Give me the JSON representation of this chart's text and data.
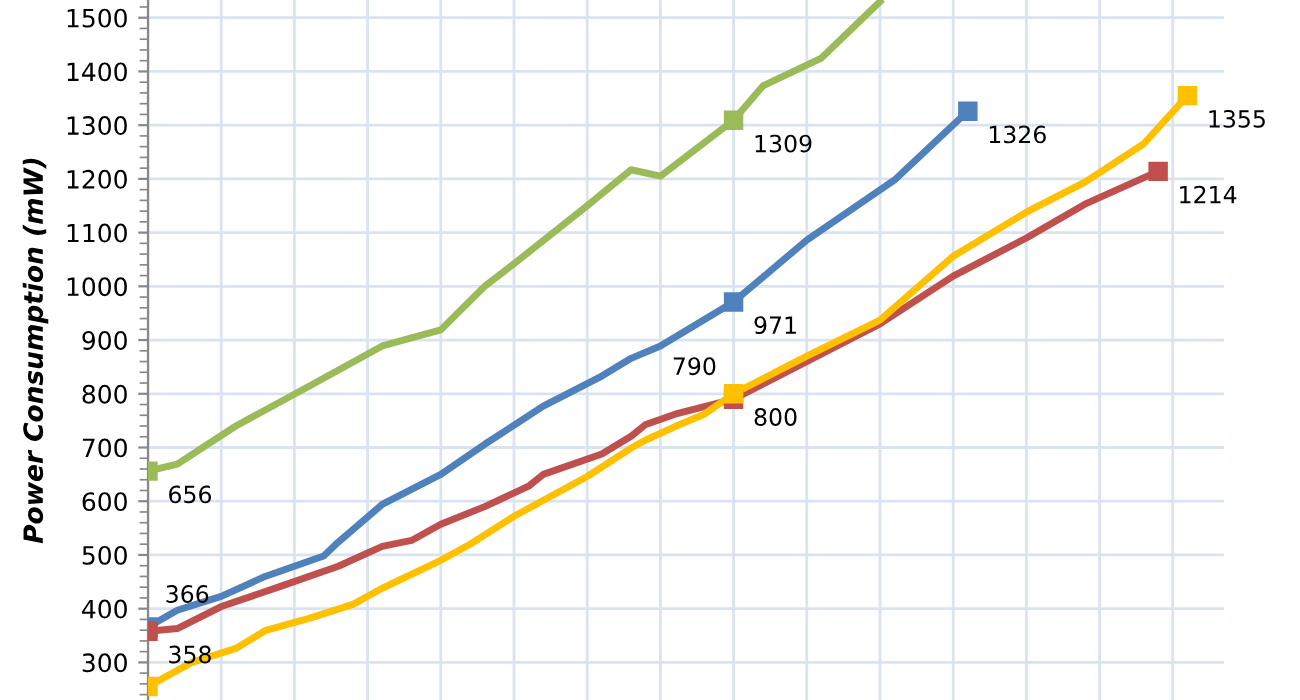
{
  "chart_data": {
    "type": "line",
    "ylabel": "Power Consumption (mW)",
    "categories": [
      null,
      null,
      null,
      null,
      null,
      null,
      null,
      null,
      null,
      null,
      null,
      null,
      null,
      null,
      null,
      null,
      null,
      null,
      null,
      null,
      null,
      null,
      null,
      null,
      null,
      null,
      null,
      null,
      null,
      null,
      null,
      null,
      null,
      null,
      null,
      null,
      null,
      null,
      null,
      null,
      null,
      null,
      null,
      null,
      null,
      null,
      null,
      null,
      null,
      null,
      null,
      null,
      null,
      null,
      null,
      null,
      null,
      null,
      null,
      null,
      null,
      null,
      null,
      null,
      null,
      null,
      null,
      null,
      null,
      null,
      null,
      null,
      null,
      null
    ],
    "ylim": [
      230,
      1533
    ],
    "yticks": [
      300,
      400,
      500,
      600,
      700,
      800,
      900,
      1000,
      1100,
      1200,
      1300,
      1400,
      1500
    ],
    "tick_labels": "y",
    "grid": true,
    "line_style": "solid",
    "series": [
      {
        "color": "#9bbb59",
        "values": [
          656,
          null,
          669,
          null,
          null,
          null,
          740,
          null,
          null,
          null,
          null,
          814,
          null,
          null,
          null,
          null,
          889,
          null,
          null,
          null,
          919,
          null,
          null,
          1000,
          null,
          1042,
          null,
          null,
          null,
          null,
          1150,
          null,
          null,
          1217,
          null,
          1205,
          null,
          null,
          null,
          null,
          1309,
          null,
          1373,
          null,
          null,
          null,
          1425,
          null,
          null,
          null,
          1530,
          null,
          null,
          null,
          null,
          null,
          null,
          null,
          null,
          null,
          null,
          null,
          null,
          null,
          null,
          null,
          null,
          null,
          null,
          null,
          null,
          null,
          null,
          null
        ],
        "value_labels": [
          "656",
          null,
          null,
          null,
          null,
          null,
          null,
          null,
          null,
          null,
          null,
          null,
          null,
          null,
          null,
          null,
          null,
          null,
          null,
          null,
          null,
          null,
          null,
          null,
          null,
          null,
          null,
          null,
          null,
          null,
          null,
          null,
          null,
          null,
          null,
          null,
          null,
          null,
          null,
          null,
          "1309",
          null,
          null,
          null,
          null,
          null,
          null,
          null,
          null,
          null,
          null,
          null,
          null,
          null,
          null,
          null,
          null,
          null,
          null,
          null,
          null,
          null,
          null,
          null,
          null,
          null,
          null,
          null,
          null,
          null,
          null,
          null,
          null,
          null
        ]
      },
      {
        "color": "#4f81bd",
        "values": [
          366,
          null,
          397,
          null,
          null,
          423,
          null,
          null,
          460,
          null,
          479,
          null,
          498,
          524,
          null,
          null,
          594,
          null,
          null,
          null,
          650,
          null,
          null,
          706,
          null,
          null,
          null,
          777,
          null,
          null,
          null,
          833,
          null,
          866,
          null,
          889,
          null,
          null,
          null,
          null,
          971,
          null,
          null,
          null,
          null,
          1086,
          null,
          null,
          null,
          null,
          null,
          1198,
          null,
          null,
          null,
          null,
          1326,
          null,
          null,
          null,
          null,
          null,
          null,
          null,
          null,
          null,
          null,
          null,
          null,
          null,
          null,
          null,
          null,
          null
        ],
        "value_labels": [
          "366",
          null,
          null,
          null,
          null,
          null,
          null,
          null,
          null,
          null,
          null,
          null,
          null,
          null,
          null,
          null,
          null,
          null,
          null,
          null,
          null,
          null,
          null,
          null,
          null,
          null,
          null,
          null,
          null,
          null,
          null,
          null,
          null,
          null,
          null,
          null,
          null,
          null,
          null,
          null,
          "971",
          null,
          null,
          null,
          null,
          null,
          null,
          null,
          null,
          null,
          null,
          null,
          null,
          null,
          null,
          null,
          "1326",
          null,
          null,
          null,
          null,
          null,
          null,
          null,
          null,
          null,
          null,
          null,
          null,
          null,
          null,
          null,
          null,
          null
        ]
      },
      {
        "color": "#c0504d",
        "values": [
          358,
          null,
          363,
          null,
          null,
          404,
          null,
          null,
          null,
          441,
          null,
          null,
          null,
          479,
          null,
          null,
          516,
          null,
          527,
          null,
          557,
          null,
          null,
          590,
          null,
          null,
          628,
          650,
          null,
          null,
          null,
          688,
          null,
          721,
          743,
          null,
          762,
          null,
          null,
          null,
          790,
          null,
          null,
          null,
          null,
          null,
          null,
          null,
          null,
          null,
          930,
          null,
          null,
          null,
          null,
          1019,
          null,
          null,
          null,
          null,
          1090,
          null,
          null,
          null,
          1153,
          null,
          null,
          null,
          null,
          1214,
          null,
          null,
          null,
          null
        ],
        "value_labels": [
          "358",
          null,
          null,
          null,
          null,
          null,
          null,
          null,
          null,
          null,
          null,
          null,
          null,
          null,
          null,
          null,
          null,
          null,
          null,
          null,
          null,
          null,
          null,
          null,
          null,
          null,
          null,
          null,
          null,
          null,
          null,
          null,
          null,
          null,
          null,
          null,
          null,
          null,
          null,
          null,
          "790",
          null,
          null,
          null,
          null,
          null,
          null,
          null,
          null,
          null,
          null,
          null,
          null,
          null,
          null,
          null,
          null,
          null,
          null,
          null,
          null,
          null,
          null,
          null,
          null,
          null,
          null,
          null,
          null,
          "1214",
          null,
          null,
          null,
          null
        ]
      },
      {
        "color": "#ffc000",
        "values": [
          255,
          null,
          null,
          300,
          null,
          null,
          326,
          null,
          359,
          null,
          null,
          382,
          null,
          null,
          408,
          null,
          438,
          null,
          null,
          null,
          490,
          null,
          520,
          null,
          null,
          572,
          null,
          null,
          null,
          null,
          646,
          null,
          null,
          699,
          714,
          null,
          739,
          null,
          762,
          null,
          800,
          null,
          null,
          null,
          null,
          870,
          null,
          null,
          null,
          null,
          937,
          null,
          null,
          null,
          null,
          1056,
          null,
          null,
          null,
          null,
          1138,
          null,
          null,
          null,
          1194,
          null,
          null,
          null,
          1265,
          null,
          null,
          1355,
          null,
          null
        ],
        "value_labels": [
          null,
          null,
          null,
          null,
          null,
          null,
          null,
          null,
          null,
          null,
          null,
          null,
          null,
          null,
          null,
          null,
          null,
          null,
          null,
          null,
          null,
          null,
          null,
          null,
          null,
          null,
          null,
          null,
          null,
          null,
          null,
          null,
          null,
          null,
          null,
          null,
          null,
          null,
          null,
          null,
          "800",
          null,
          null,
          null,
          null,
          null,
          null,
          null,
          null,
          null,
          null,
          null,
          null,
          null,
          null,
          null,
          null,
          null,
          null,
          null,
          null,
          null,
          null,
          null,
          null,
          null,
          null,
          null,
          null,
          null,
          null,
          "1355",
          null,
          null
        ]
      }
    ]
  }
}
